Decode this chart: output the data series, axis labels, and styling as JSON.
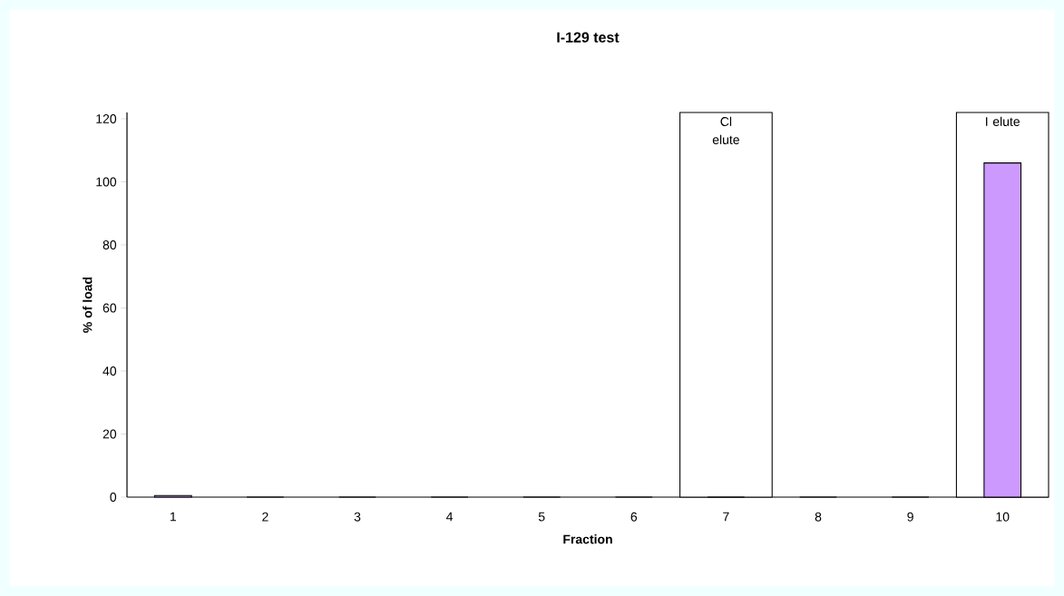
{
  "chart_data": {
    "type": "bar",
    "title": "I-129 test",
    "xlabel": "Fraction",
    "ylabel": "% of load",
    "x": [
      1,
      2,
      3,
      4,
      5,
      6,
      7,
      8,
      9,
      10
    ],
    "values": [
      0.5,
      0,
      0,
      0,
      0,
      0,
      0,
      0,
      0,
      106
    ],
    "color": "#cc99ff",
    "xlim": [
      0.5,
      10.5
    ],
    "xticks": [
      1,
      2,
      3,
      4,
      5,
      6,
      7,
      8,
      9,
      10
    ],
    "ylim": [
      0,
      122
    ],
    "yticks": [
      0,
      20,
      40,
      60,
      80,
      100,
      120
    ],
    "bands": [
      {
        "axis": "x",
        "from": 6.5,
        "to": 7.5,
        "label": "Cl elute",
        "color": "#ffffff"
      },
      {
        "axis": "x",
        "from": 9.5,
        "to": 10.5,
        "label": "I elute",
        "color": "#ffffff"
      }
    ],
    "grid": false
  }
}
